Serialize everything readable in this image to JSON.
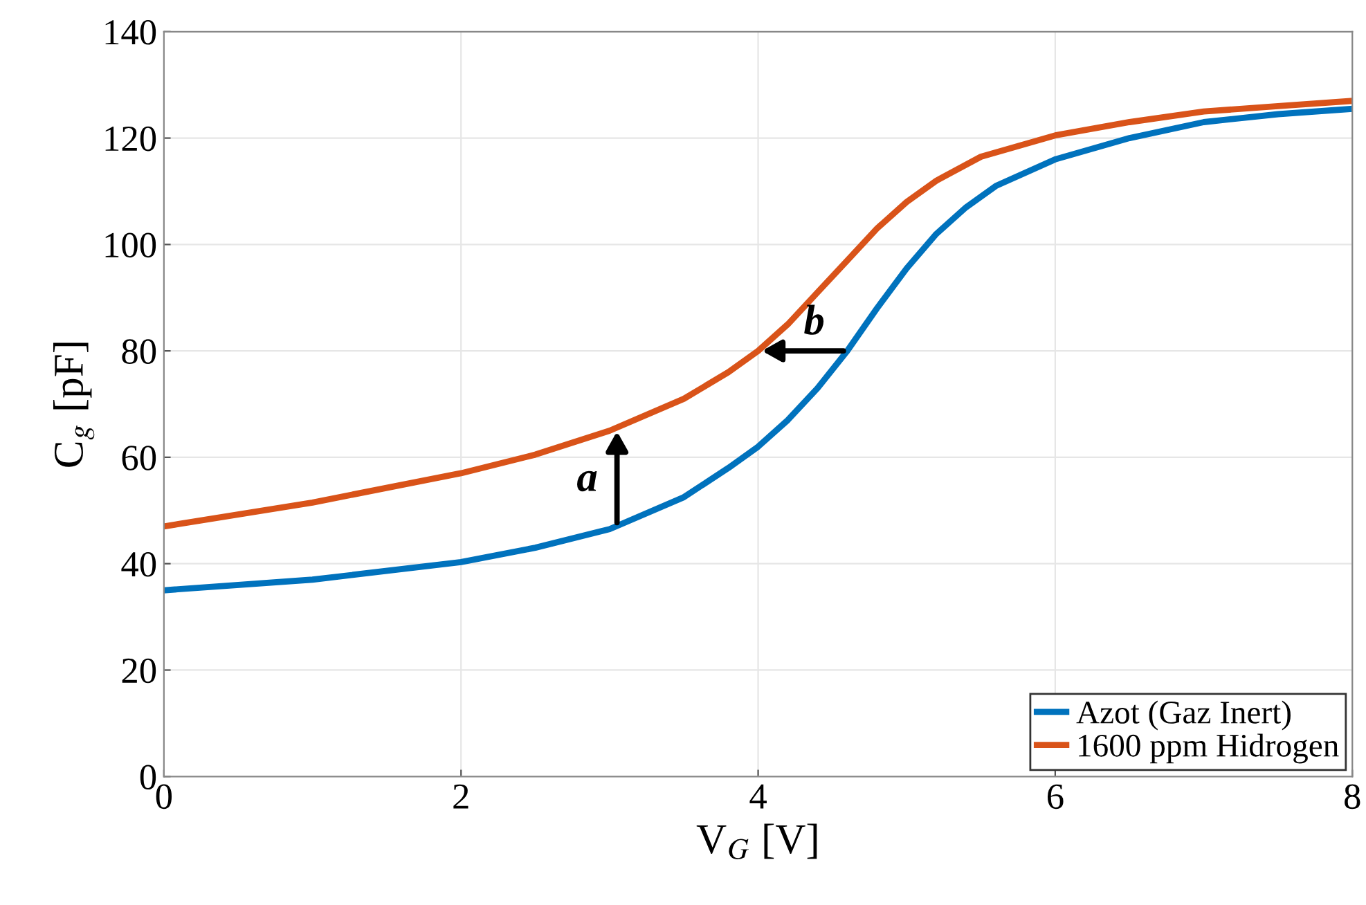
{
  "chart_data": {
    "type": "line",
    "xlabel": "V$_{G}$ [V]",
    "ylabel": "C$_{g}$ [pF]",
    "xlim": [
      0,
      8
    ],
    "ylim": [
      0,
      140
    ],
    "xticks": [
      0,
      2,
      4,
      6,
      8
    ],
    "yticks": [
      0,
      20,
      40,
      60,
      80,
      100,
      120,
      140
    ],
    "grid": true,
    "legend": "bottom right",
    "line_style": "solid",
    "marker": "none",
    "annotations": [
      {
        "text": "a",
        "x": 3.05,
        "y": 47
      },
      {
        "text": "b",
        "x": 4.6,
        "y": 80
      }
    ],
    "series": [
      {
        "name": "Azot (Gaz Inert)",
        "color": "#0072bd",
        "x": [
          0,
          1,
          2,
          2.5,
          3,
          3.5,
          3.8,
          4,
          4.2,
          4.4,
          4.6,
          4.8,
          5,
          5.2,
          5.4,
          5.6,
          6,
          6.5,
          7,
          7.5,
          8
        ],
        "values": [
          35,
          37,
          40.3,
          43,
          46.5,
          52.5,
          58,
          62,
          67,
          73,
          80,
          88,
          95.5,
          102,
          107,
          111,
          116,
          120,
          123,
          124.5,
          125.5
        ]
      },
      {
        "name": "1600 ppm Hidrogen",
        "color": "#d95319",
        "x": [
          0,
          1,
          2,
          2.5,
          3,
          3.5,
          3.8,
          4,
          4.2,
          4.4,
          4.6,
          4.8,
          5,
          5.2,
          5.5,
          6,
          6.5,
          7,
          7.5,
          8
        ],
        "values": [
          47,
          51.5,
          57,
          60.5,
          65,
          71,
          76,
          80,
          85,
          91,
          97,
          103,
          108,
          112,
          116.5,
          120.5,
          123,
          125,
          126,
          127
        ]
      }
    ]
  }
}
